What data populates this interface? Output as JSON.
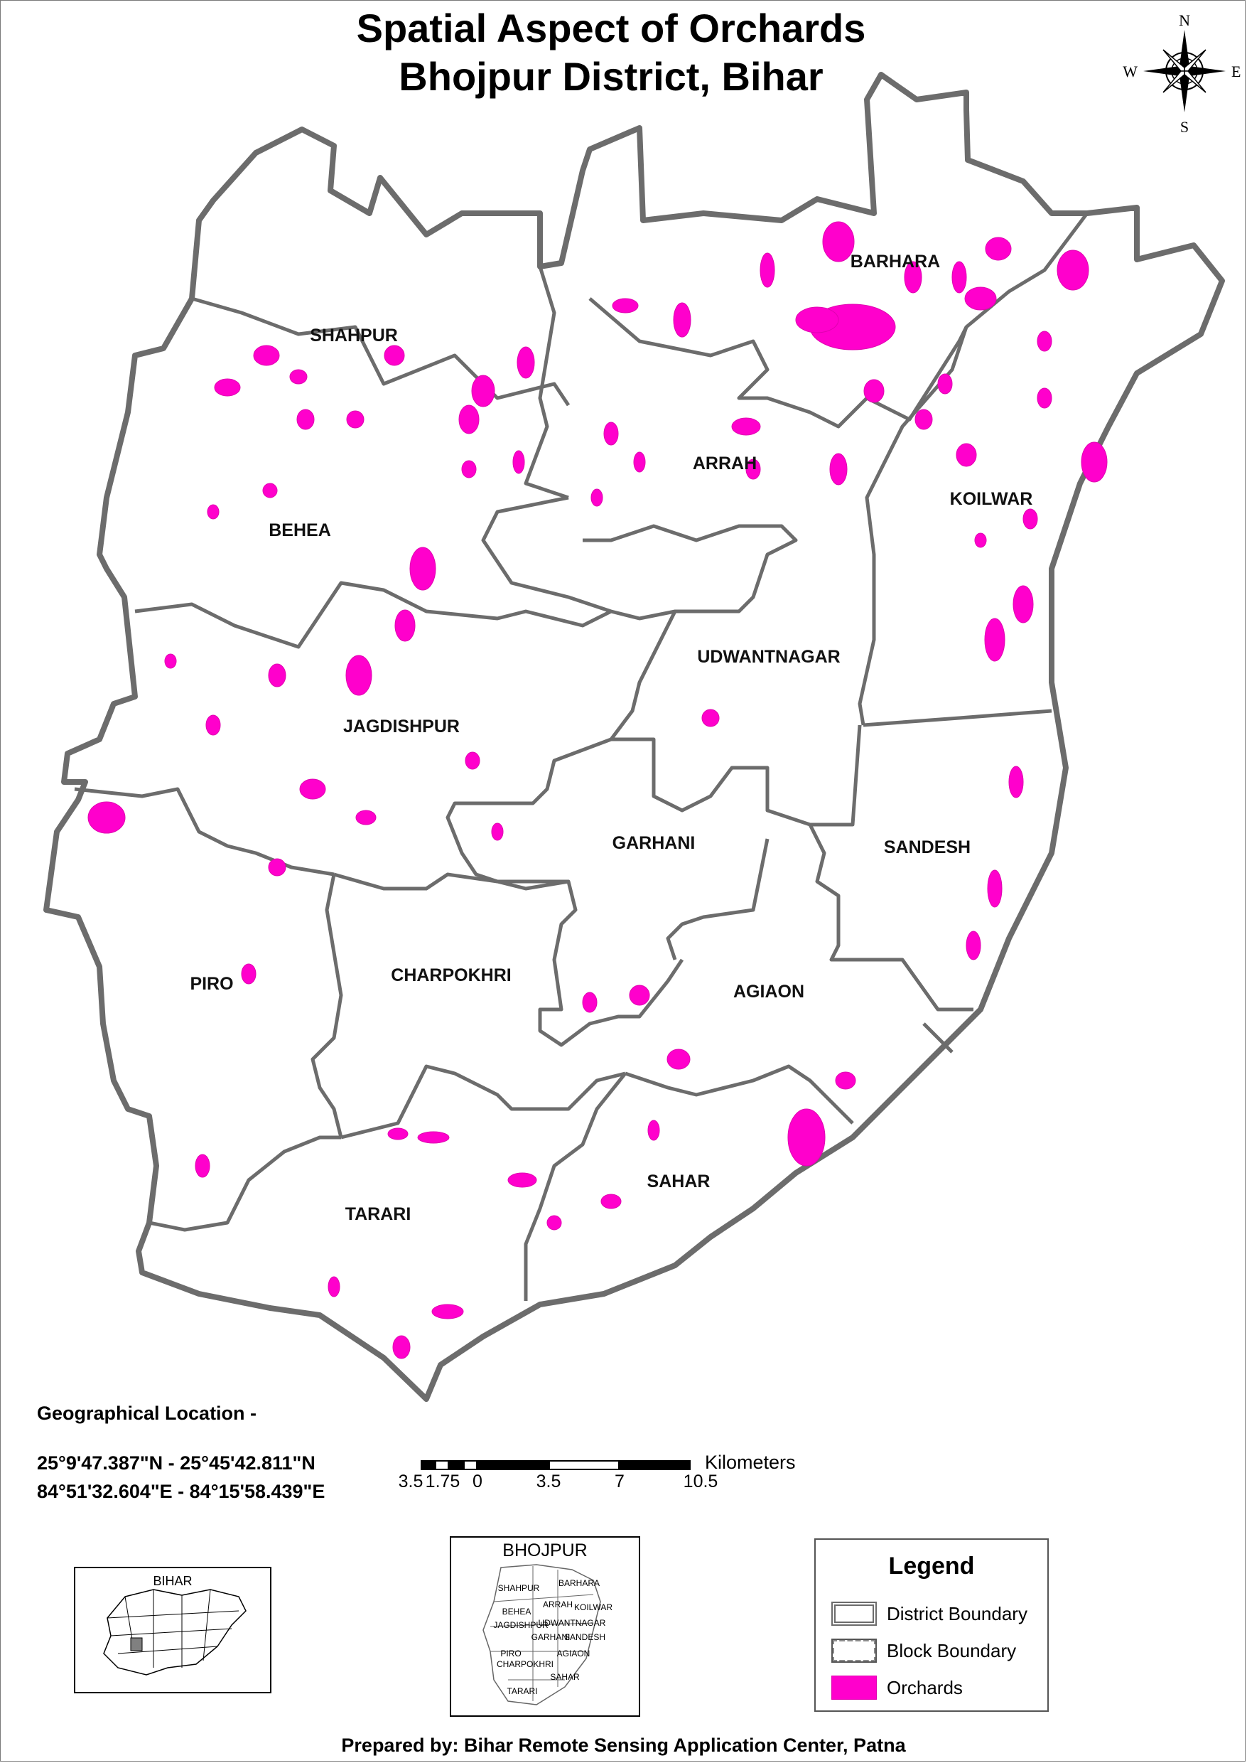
{
  "title": {
    "line1": "Spatial Aspect of Orchards",
    "line2": "Bhojpur District, Bihar"
  },
  "compass": {
    "n": "N",
    "s": "S",
    "e": "E",
    "w": "W",
    "icon": "compass-rose-icon"
  },
  "blocks": [
    "SHAHPUR",
    "BARHARA",
    "ARRAH",
    "KOILWAR",
    "BEHEA",
    "UDWANTNAGAR",
    "JAGDISHPUR",
    "GARHANI",
    "SANDESH",
    "PIRO",
    "CHARPOKHRI",
    "AGIAON",
    "SAHAR",
    "TARARI"
  ],
  "geo": {
    "heading": "Geographical Location -",
    "lat": "25°9'47.387\"N - 25°45'42.811\"N",
    "lon": "84°51'32.604\"E - 84°15'58.439\"E"
  },
  "scale": {
    "unit": "Kilometers",
    "ticks": [
      "3.5",
      "1.75",
      "0",
      "3.5",
      "7",
      "10.5"
    ]
  },
  "inset_bihar": {
    "label": "BIHAR",
    "highlight_color": "#808080"
  },
  "inset_bhojpur": {
    "label": "BHOJPUR",
    "blocks": [
      "SHAHPUR",
      "BARHARA",
      "ARRAH",
      "KOILWAR",
      "BEHEA",
      "UDWANTNAGAR",
      "JAGDISHPUR",
      "GARHANI",
      "SANDESH",
      "PIRO",
      "CHARPOKHRI",
      "AGIAON",
      "SAHAR",
      "TARARI"
    ]
  },
  "legend": {
    "title": "Legend",
    "items": [
      "District Boundary",
      "Block Boundary",
      "Orchards"
    ]
  },
  "colors": {
    "orchard": "#ff00cc",
    "boundary": "#6c6c6c"
  },
  "credit": "Prepared by: Bihar Remote Sensing Application Center, Patna"
}
